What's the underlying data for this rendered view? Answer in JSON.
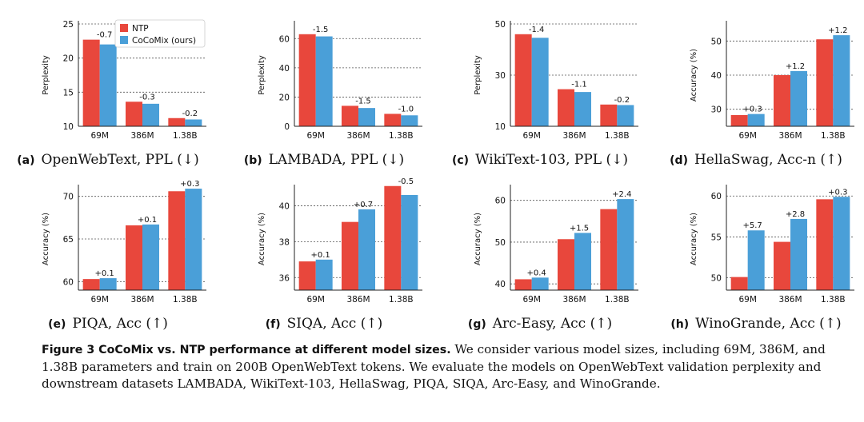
{
  "colors": {
    "ntp": "#e8473c",
    "cocomix": "#4a9fd8",
    "grid": "#555555",
    "axis": "#222222"
  },
  "legend": {
    "ntp": "NTP",
    "cocomix": "CoCoMix (ours)"
  },
  "figure_caption": {
    "title": "Figure 3  CoCoMix vs. NTP performance at different model sizes.",
    "body": " We consider various model sizes, including 69M, 386M, and 1.38B parameters and train on 200B OpenWebText tokens. We evaluate the models on OpenWebText validation perplexity and downstream datasets LAMBADA, WikiText-103, HellaSwag, PIQA, SIQA, Arc-Easy, and WinoGrande."
  },
  "chart_data": [
    {
      "id": "a",
      "type": "bar",
      "label": "(a)",
      "caption": "OpenWebText, PPL (↓)",
      "ylabel": "Perplexity",
      "ylim": [
        10,
        25
      ],
      "yticks": [
        10,
        15,
        20,
        25
      ],
      "categories": [
        "69M",
        "386M",
        "1.38B"
      ],
      "series": [
        {
          "name": "NTP",
          "values": [
            22.7,
            13.6,
            11.2
          ]
        },
        {
          "name": "CoCoMix (ours)",
          "values": [
            22.0,
            13.3,
            11.0
          ]
        }
      ],
      "annotations": [
        "-0.7",
        "-0.3",
        "-0.2"
      ],
      "legend": "top-left"
    },
    {
      "id": "b",
      "type": "bar",
      "label": "(b)",
      "caption": "LAMBADA, PPL (↓)",
      "ylabel": "Perplexity",
      "ylim": [
        0,
        70
      ],
      "yticks": [
        0,
        20,
        40,
        60
      ],
      "categories": [
        "69M",
        "386M",
        "1.38B"
      ],
      "series": [
        {
          "name": "NTP",
          "values": [
            63.0,
            14.0,
            8.5
          ]
        },
        {
          "name": "CoCoMix (ours)",
          "values": [
            61.5,
            12.5,
            7.5
          ]
        }
      ],
      "annotations": [
        "-1.5",
        "-1.5",
        "-1.0"
      ]
    },
    {
      "id": "c",
      "type": "bar",
      "label": "(c)",
      "caption": "WikiText-103, PPL (↓)",
      "ylabel": "Perplexity",
      "ylim": [
        10,
        50
      ],
      "yticks": [
        10,
        30,
        50
      ],
      "categories": [
        "69M",
        "386M",
        "1.38B"
      ],
      "series": [
        {
          "name": "NTP",
          "values": [
            46.0,
            24.5,
            18.5
          ]
        },
        {
          "name": "CoCoMix (ours)",
          "values": [
            44.6,
            23.4,
            18.3
          ]
        }
      ],
      "annotations": [
        "-1.4",
        "-1.1",
        "-0.2"
      ]
    },
    {
      "id": "d",
      "type": "bar",
      "label": "(d)",
      "caption": "HellaSwag, Acc-n (↑)",
      "ylabel": "Accuracy (%)",
      "ylim": [
        25,
        55
      ],
      "yticks": [
        30,
        40,
        50
      ],
      "categories": [
        "69M",
        "386M",
        "1.38B"
      ],
      "series": [
        {
          "name": "NTP",
          "values": [
            28.3,
            40.0,
            50.5
          ]
        },
        {
          "name": "CoCoMix (ours)",
          "values": [
            28.6,
            41.2,
            51.7
          ]
        }
      ],
      "annotations": [
        "+0.3",
        "+1.2",
        "+1.2"
      ]
    },
    {
      "id": "e",
      "type": "bar",
      "label": "(e)",
      "caption": "PIQA, Acc (↑)",
      "ylabel": "Accuracy (%)",
      "ylim": [
        59,
        71
      ],
      "yticks": [
        60,
        65,
        70
      ],
      "categories": [
        "69M",
        "386M",
        "1.38B"
      ],
      "series": [
        {
          "name": "NTP",
          "values": [
            60.3,
            66.6,
            70.6
          ]
        },
        {
          "name": "CoCoMix (ours)",
          "values": [
            60.4,
            66.7,
            70.9
          ]
        }
      ],
      "annotations": [
        "+0.1",
        "+0.1",
        "+0.3"
      ]
    },
    {
      "id": "f",
      "type": "bar",
      "label": "(f)",
      "caption": "SIQA, Acc (↑)",
      "ylabel": "Accuracy (%)",
      "ylim": [
        35.3,
        41
      ],
      "yticks": [
        36,
        38,
        40
      ],
      "categories": [
        "69M",
        "386M",
        "1.38B"
      ],
      "series": [
        {
          "name": "NTP",
          "values": [
            36.9,
            39.1,
            41.1
          ]
        },
        {
          "name": "CoCoMix (ours)",
          "values": [
            37.0,
            39.8,
            40.6
          ]
        }
      ],
      "annotations": [
        "+0.1",
        "+0.7",
        "-0.5"
      ]
    },
    {
      "id": "g",
      "type": "bar",
      "label": "(g)",
      "caption": "Arc-Easy, Acc (↑)",
      "ylabel": "Accuracy (%)",
      "ylim": [
        38.5,
        63
      ],
      "yticks": [
        40,
        50,
        60
      ],
      "categories": [
        "69M",
        "386M",
        "1.38B"
      ],
      "series": [
        {
          "name": "NTP",
          "values": [
            41.1,
            50.7,
            57.9
          ]
        },
        {
          "name": "CoCoMix (ours)",
          "values": [
            41.5,
            52.2,
            60.3
          ]
        }
      ],
      "annotations": [
        "+0.4",
        "+1.5",
        "+2.4"
      ]
    },
    {
      "id": "h",
      "type": "bar",
      "label": "(h)",
      "caption": "WinoGrande, Acc (↑)",
      "ylabel": "Accuracy (%)",
      "ylim": [
        48.5,
        61
      ],
      "yticks": [
        50,
        55,
        60
      ],
      "categories": [
        "69M",
        "386M",
        "1.38B"
      ],
      "series": [
        {
          "name": "NTP",
          "values": [
            50.1,
            54.4,
            59.6
          ]
        },
        {
          "name": "CoCoMix (ours)",
          "values": [
            55.8,
            57.2,
            59.9
          ]
        }
      ],
      "annotations": [
        "+5.7",
        "+2.8",
        "+0.3"
      ]
    }
  ]
}
